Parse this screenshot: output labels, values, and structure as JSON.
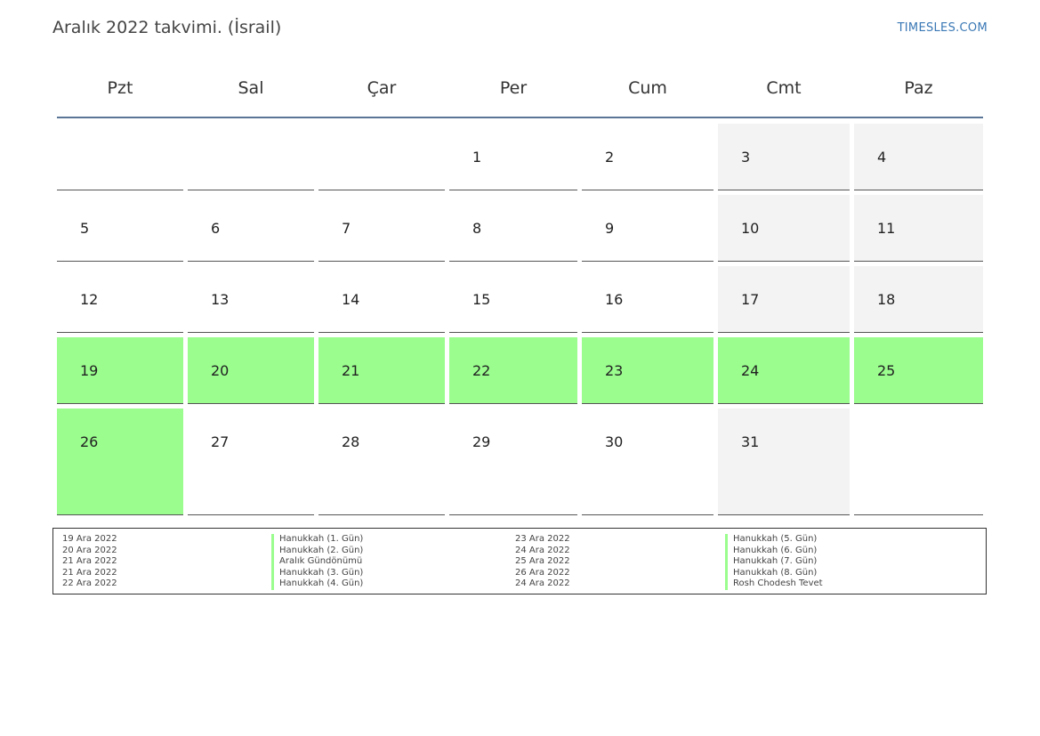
{
  "header": {
    "title": "Aralık 2022 takvimi. (İsrail)",
    "brand": "TIMESLES.COM"
  },
  "colors": {
    "holiday": "#9afd8e",
    "weekend": "#f3f3f3",
    "header_line": "#5a7596",
    "brand": "#3a78b5"
  },
  "weekdays": [
    "Pzt",
    "Sal",
    "Çar",
    "Per",
    "Cum",
    "Cmt",
    "Paz"
  ],
  "weeks": [
    [
      "",
      "",
      "",
      "1",
      "2",
      "3",
      "4"
    ],
    [
      "5",
      "6",
      "7",
      "8",
      "9",
      "10",
      "11"
    ],
    [
      "12",
      "13",
      "14",
      "15",
      "16",
      "17",
      "18"
    ],
    [
      "19",
      "20",
      "21",
      "22",
      "23",
      "24",
      "25"
    ],
    [
      "26",
      "27",
      "28",
      "29",
      "30",
      "31",
      ""
    ]
  ],
  "legend": {
    "left": [
      {
        "date": "19 Ara 2022",
        "name": "Hanukkah (1. Gün)"
      },
      {
        "date": "20 Ara 2022",
        "name": "Hanukkah (2. Gün)"
      },
      {
        "date": "21 Ara 2022",
        "name": "Aralık Gündönümü"
      },
      {
        "date": "21 Ara 2022",
        "name": "Hanukkah (3. Gün)"
      },
      {
        "date": "22 Ara 2022",
        "name": "Hanukkah (4. Gün)"
      }
    ],
    "right": [
      {
        "date": "23 Ara 2022",
        "name": "Hanukkah (5. Gün)"
      },
      {
        "date": "24 Ara 2022",
        "name": "Hanukkah (6. Gün)"
      },
      {
        "date": "25 Ara 2022",
        "name": "Hanukkah (7. Gün)"
      },
      {
        "date": "26 Ara 2022",
        "name": "Hanukkah (8. Gün)"
      },
      {
        "date": "24 Ara 2022",
        "name": "Rosh Chodesh Tevet"
      }
    ]
  }
}
